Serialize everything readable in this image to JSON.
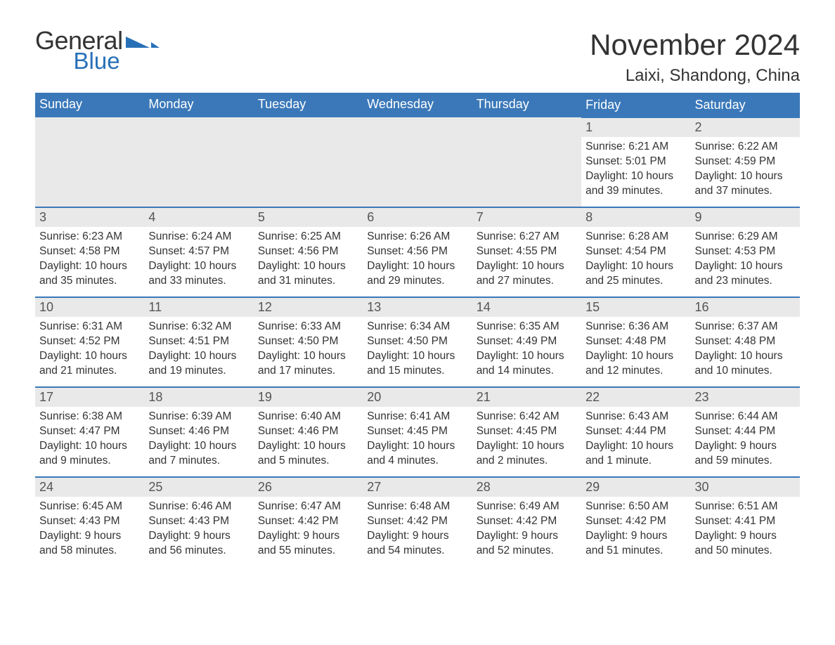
{
  "logo": {
    "word1": "General",
    "word2": "Blue"
  },
  "title": "November 2024",
  "location": "Laixi, Shandong, China",
  "colors": {
    "header_bg": "#3a78b9",
    "header_text": "#ffffff",
    "daynum_bg": "#e9e9e9",
    "border": "#3a78b9",
    "logo_blue": "#2770b7"
  },
  "weekdays": [
    "Sunday",
    "Monday",
    "Tuesday",
    "Wednesday",
    "Thursday",
    "Friday",
    "Saturday"
  ],
  "leading_blanks": 5,
  "days": [
    {
      "n": "1",
      "sr": "6:21 AM",
      "ss": "5:01 PM",
      "dl": "10 hours and 39 minutes."
    },
    {
      "n": "2",
      "sr": "6:22 AM",
      "ss": "4:59 PM",
      "dl": "10 hours and 37 minutes."
    },
    {
      "n": "3",
      "sr": "6:23 AM",
      "ss": "4:58 PM",
      "dl": "10 hours and 35 minutes."
    },
    {
      "n": "4",
      "sr": "6:24 AM",
      "ss": "4:57 PM",
      "dl": "10 hours and 33 minutes."
    },
    {
      "n": "5",
      "sr": "6:25 AM",
      "ss": "4:56 PM",
      "dl": "10 hours and 31 minutes."
    },
    {
      "n": "6",
      "sr": "6:26 AM",
      "ss": "4:56 PM",
      "dl": "10 hours and 29 minutes."
    },
    {
      "n": "7",
      "sr": "6:27 AM",
      "ss": "4:55 PM",
      "dl": "10 hours and 27 minutes."
    },
    {
      "n": "8",
      "sr": "6:28 AM",
      "ss": "4:54 PM",
      "dl": "10 hours and 25 minutes."
    },
    {
      "n": "9",
      "sr": "6:29 AM",
      "ss": "4:53 PM",
      "dl": "10 hours and 23 minutes."
    },
    {
      "n": "10",
      "sr": "6:31 AM",
      "ss": "4:52 PM",
      "dl": "10 hours and 21 minutes."
    },
    {
      "n": "11",
      "sr": "6:32 AM",
      "ss": "4:51 PM",
      "dl": "10 hours and 19 minutes."
    },
    {
      "n": "12",
      "sr": "6:33 AM",
      "ss": "4:50 PM",
      "dl": "10 hours and 17 minutes."
    },
    {
      "n": "13",
      "sr": "6:34 AM",
      "ss": "4:50 PM",
      "dl": "10 hours and 15 minutes."
    },
    {
      "n": "14",
      "sr": "6:35 AM",
      "ss": "4:49 PM",
      "dl": "10 hours and 14 minutes."
    },
    {
      "n": "15",
      "sr": "6:36 AM",
      "ss": "4:48 PM",
      "dl": "10 hours and 12 minutes."
    },
    {
      "n": "16",
      "sr": "6:37 AM",
      "ss": "4:48 PM",
      "dl": "10 hours and 10 minutes."
    },
    {
      "n": "17",
      "sr": "6:38 AM",
      "ss": "4:47 PM",
      "dl": "10 hours and 9 minutes."
    },
    {
      "n": "18",
      "sr": "6:39 AM",
      "ss": "4:46 PM",
      "dl": "10 hours and 7 minutes."
    },
    {
      "n": "19",
      "sr": "6:40 AM",
      "ss": "4:46 PM",
      "dl": "10 hours and 5 minutes."
    },
    {
      "n": "20",
      "sr": "6:41 AM",
      "ss": "4:45 PM",
      "dl": "10 hours and 4 minutes."
    },
    {
      "n": "21",
      "sr": "6:42 AM",
      "ss": "4:45 PM",
      "dl": "10 hours and 2 minutes."
    },
    {
      "n": "22",
      "sr": "6:43 AM",
      "ss": "4:44 PM",
      "dl": "10 hours and 1 minute."
    },
    {
      "n": "23",
      "sr": "6:44 AM",
      "ss": "4:44 PM",
      "dl": "9 hours and 59 minutes."
    },
    {
      "n": "24",
      "sr": "6:45 AM",
      "ss": "4:43 PM",
      "dl": "9 hours and 58 minutes."
    },
    {
      "n": "25",
      "sr": "6:46 AM",
      "ss": "4:43 PM",
      "dl": "9 hours and 56 minutes."
    },
    {
      "n": "26",
      "sr": "6:47 AM",
      "ss": "4:42 PM",
      "dl": "9 hours and 55 minutes."
    },
    {
      "n": "27",
      "sr": "6:48 AM",
      "ss": "4:42 PM",
      "dl": "9 hours and 54 minutes."
    },
    {
      "n": "28",
      "sr": "6:49 AM",
      "ss": "4:42 PM",
      "dl": "9 hours and 52 minutes."
    },
    {
      "n": "29",
      "sr": "6:50 AM",
      "ss": "4:42 PM",
      "dl": "9 hours and 51 minutes."
    },
    {
      "n": "30",
      "sr": "6:51 AM",
      "ss": "4:41 PM",
      "dl": "9 hours and 50 minutes."
    }
  ],
  "labels": {
    "sunrise": "Sunrise: ",
    "sunset": "Sunset: ",
    "daylight": "Daylight: "
  }
}
